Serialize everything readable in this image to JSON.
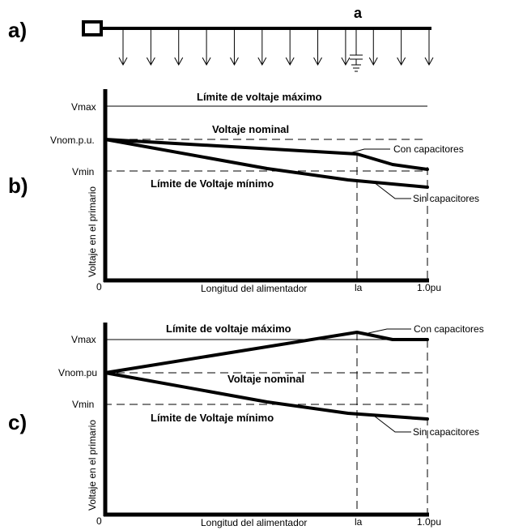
{
  "panel_a": {
    "letter": "a)",
    "node_label": "a",
    "load_arrow_count": 12
  },
  "panel_b": {
    "letter": "b)",
    "v_max": "Vmax",
    "v_nom": "Vnom.p.u.",
    "v_min": "Vmin",
    "title_max": "Límite de voltaje máximo",
    "title_nom": "Voltaje nominal",
    "title_min": "Límite de Voltaje mínimo",
    "with_caps": "Con capacitores",
    "without_caps": "Sin capacitores",
    "ylabel": "Voltaje en el primario",
    "xlabel": "Longitud del alimentador",
    "origin": "0",
    "x_la": "la",
    "x_end": "1.0pu"
  },
  "panel_c": {
    "letter": "c)",
    "v_max": "Vmax",
    "v_nom": "Vnom.pu",
    "v_min": "Vmin",
    "title_max": "Límite de voltaje máximo",
    "title_nom": "Voltaje nominal",
    "title_min": "Límite de Voltaje mínimo",
    "with_caps": "Con capacitores",
    "without_caps": "Sin capacitores",
    "ylabel": "Voltaje en el primario",
    "xlabel": "Longitud del alimentador",
    "origin": "0",
    "x_la": "la",
    "x_end": "1.0pu"
  }
}
